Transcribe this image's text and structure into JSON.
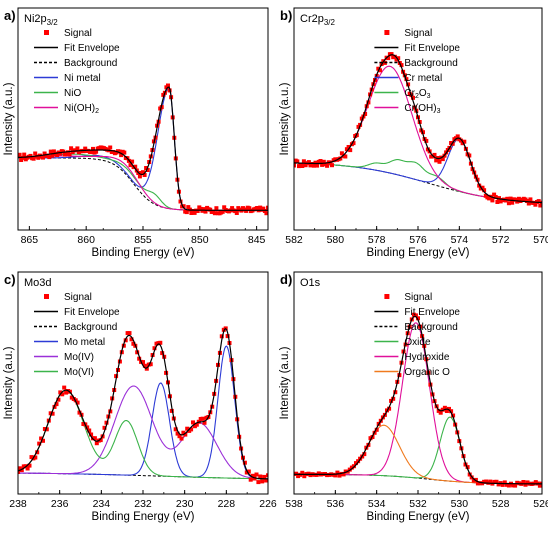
{
  "colors": {
    "signal": "#ff0000",
    "fit": "#000000",
    "background": "#000000",
    "blue": "#2d3bd6",
    "green": "#3cb44b",
    "magenta": "#e0109a",
    "purple": "#9b30d8",
    "orange": "#f07a1e"
  },
  "chart_data": [
    {
      "type": "line",
      "panel_letter": "a)",
      "title": "Ni2p3/2",
      "title_main": "Ni2p",
      "title_sub": "3/2",
      "xlabel": "Binding Energy (eV)",
      "ylabel": "Intensity (a.u.)",
      "xlim": [
        866,
        844
      ],
      "x_reversed": true,
      "xticks": [
        "865",
        "860",
        "855",
        "850",
        "845"
      ],
      "xtick_values": [
        865,
        860,
        855,
        850,
        845
      ],
      "ylim": [
        0,
        1
      ],
      "y_tick_labels": false,
      "legend_placement": "top-left",
      "legend": [
        {
          "label": "Signal",
          "style": "square",
          "color_key": "signal"
        },
        {
          "label": "Fit Envelope",
          "style": "solid",
          "color_key": "fit"
        },
        {
          "label": "Background",
          "style": "dashed",
          "color_key": "background"
        },
        {
          "label": "Ni metal",
          "style": "solid",
          "color_key": "blue"
        },
        {
          "label": "NiO",
          "style": "solid",
          "color_key": "green"
        },
        {
          "label": "Ni(OH)2",
          "label_main": "Ni(OH)",
          "label_sub": "2",
          "style": "solid",
          "color_key": "magenta"
        }
      ],
      "background_curve": {
        "kind": "shirley",
        "left": 0.32,
        "right": 0.05,
        "center": 855.8,
        "width": 0.9
      },
      "series": [
        {
          "name": "Ni metal",
          "color_key": "blue",
          "components": [
            {
              "center": 852.7,
              "amp": 0.62,
              "width": 0.45,
              "asym": 2.2
            },
            {
              "center": 858.6,
              "amp": 0.02,
              "width": 1.6
            }
          ]
        },
        {
          "name": "NiO",
          "color_key": "green",
          "components": [
            {
              "center": 854.0,
              "amp": 0.045,
              "width": 0.6
            },
            {
              "center": 856.0,
              "amp": 0.035,
              "width": 1.2
            },
            {
              "center": 861.0,
              "amp": 0.02,
              "width": 2.0
            }
          ]
        },
        {
          "name": "Ni(OH)2",
          "color_key": "magenta",
          "components": [
            {
              "center": 856.0,
              "amp": 0.035,
              "width": 1.1
            },
            {
              "center": 857.5,
              "amp": 0.02,
              "width": 1.4
            },
            {
              "center": 862.0,
              "amp": 0.01,
              "width": 2.0
            }
          ]
        }
      ],
      "signal_samples": 160,
      "signal_noise": 0.016
    },
    {
      "type": "line",
      "panel_letter": "b)",
      "title": "Cr2p3/2",
      "title_main": "Cr2p",
      "title_sub": "3/2",
      "xlabel": "Binding Energy (eV)",
      "ylabel": "Intensity (a.u.)",
      "xlim": [
        582,
        570
      ],
      "x_reversed": true,
      "xticks": [
        "582",
        "580",
        "578",
        "576",
        "574",
        "572",
        "570"
      ],
      "xtick_values": [
        582,
        580,
        578,
        576,
        574,
        572,
        570
      ],
      "ylim": [
        0,
        1
      ],
      "y_tick_labels": false,
      "legend_placement": "top-right",
      "legend": [
        {
          "label": "Signal",
          "style": "square",
          "color_key": "signal"
        },
        {
          "label": "Fit Envelope",
          "style": "solid",
          "color_key": "fit"
        },
        {
          "label": "Background",
          "style": "dashed",
          "color_key": "background"
        },
        {
          "label": "Cr metal",
          "style": "solid",
          "color_key": "blue"
        },
        {
          "label": "Cr2O3",
          "label_main": "Cr",
          "label_sub": "2",
          "label_main2": "O",
          "label_sub2": "3",
          "style": "solid",
          "color_key": "green"
        },
        {
          "label": "Cr(OH)3",
          "label_main": "Cr(OH)",
          "label_sub": "3",
          "style": "solid",
          "color_key": "magenta"
        }
      ],
      "background_curve": {
        "kind": "shirley",
        "left": 0.3,
        "right": 0.08,
        "center": 575.5,
        "width": 1.8
      },
      "series": [
        {
          "name": "Cr metal",
          "color_key": "blue",
          "components": [
            {
              "center": 574.0,
              "amp": 0.27,
              "width": 0.55
            }
          ]
        },
        {
          "name": "Cr2O3",
          "color_key": "green",
          "components": [
            {
              "center": 577.0,
              "amp": 0.07,
              "width": 0.4
            },
            {
              "center": 576.1,
              "amp": 0.08,
              "width": 0.4
            },
            {
              "center": 575.1,
              "amp": 0.045,
              "width": 0.4
            },
            {
              "center": 578.0,
              "amp": 0.035,
              "width": 0.4
            }
          ]
        },
        {
          "name": "Cr(OH)3",
          "color_key": "magenta",
          "components": [
            {
              "center": 577.35,
              "amp": 0.55,
              "width": 1.05
            }
          ]
        }
      ],
      "signal_samples": 150,
      "signal_noise": 0.018
    },
    {
      "type": "line",
      "panel_letter": "c)",
      "title": "Mo3d",
      "xlabel": "Binding Energy (eV)",
      "ylabel": "Intensity (a.u.)",
      "xlim": [
        238,
        226
      ],
      "x_reversed": true,
      "xticks": [
        "238",
        "236",
        "234",
        "232",
        "230",
        "228",
        "226"
      ],
      "xtick_values": [
        238,
        236,
        234,
        232,
        230,
        228,
        226
      ],
      "ylim": [
        0,
        1
      ],
      "y_tick_labels": false,
      "legend_placement": "top-left",
      "legend": [
        {
          "label": "Signal",
          "style": "square",
          "color_key": "signal"
        },
        {
          "label": "Fit Envelope",
          "style": "solid",
          "color_key": "fit"
        },
        {
          "label": "Background",
          "style": "dashed",
          "color_key": "background"
        },
        {
          "label": "Mo metal",
          "style": "solid",
          "color_key": "blue"
        },
        {
          "label": "Mo(IV)",
          "style": "solid",
          "color_key": "purple"
        },
        {
          "label": "Mo(VI)",
          "style": "solid",
          "color_key": "green"
        }
      ],
      "background_curve": {
        "kind": "shirley",
        "left": 0.06,
        "right": 0.02,
        "center": 231.0,
        "width": 3.0
      },
      "series": [
        {
          "name": "Mo metal",
          "color_key": "blue",
          "components": [
            {
              "center": 228.0,
              "amp": 0.68,
              "width": 0.4
            },
            {
              "center": 231.15,
              "amp": 0.48,
              "width": 0.42
            }
          ]
        },
        {
          "name": "Mo(IV)",
          "color_key": "purple",
          "components": [
            {
              "center": 229.3,
              "amp": 0.28,
              "width": 0.85
            },
            {
              "center": 232.45,
              "amp": 0.46,
              "width": 0.9
            }
          ]
        },
        {
          "name": "Mo(VI)",
          "color_key": "green",
          "components": [
            {
              "center": 232.8,
              "amp": 0.28,
              "width": 0.55
            },
            {
              "center": 235.7,
              "amp": 0.43,
              "width": 0.85
            }
          ]
        }
      ],
      "signal_samples": 130,
      "signal_noise": 0.02
    },
    {
      "type": "line",
      "panel_letter": "d)",
      "title": "O1s",
      "xlabel": "Binding Energy (eV)",
      "ylabel": "Intensity (a.u.)",
      "xlim": [
        538,
        526
      ],
      "x_reversed": true,
      "xticks": [
        "538",
        "536",
        "534",
        "532",
        "530",
        "528",
        "526"
      ],
      "xtick_values": [
        538,
        536,
        534,
        532,
        530,
        528,
        526
      ],
      "ylim": [
        0,
        1
      ],
      "y_tick_labels": false,
      "legend_placement": "top-right",
      "legend": [
        {
          "label": "Signal",
          "style": "square",
          "color_key": "signal"
        },
        {
          "label": "Fit Envelope",
          "style": "solid",
          "color_key": "fit"
        },
        {
          "label": "Background",
          "style": "dashed",
          "color_key": "background"
        },
        {
          "label": "Oxide",
          "style": "solid",
          "color_key": "green"
        },
        {
          "label": "Hydroxide",
          "style": "solid",
          "color_key": "magenta"
        },
        {
          "label": "Organic O",
          "style": "solid",
          "color_key": "orange"
        }
      ],
      "background_curve": {
        "kind": "shirley",
        "left": 0.05,
        "right": 0.0,
        "center": 531.5,
        "width": 1.2
      },
      "series": [
        {
          "name": "Oxide",
          "color_key": "green",
          "components": [
            {
              "center": 530.45,
              "amp": 0.33,
              "width": 0.48
            }
          ]
        },
        {
          "name": "Hydroxide",
          "color_key": "magenta",
          "components": [
            {
              "center": 532.1,
              "amp": 0.8,
              "width": 0.65
            }
          ]
        },
        {
          "name": "Organic O",
          "color_key": "orange",
          "components": [
            {
              "center": 533.65,
              "amp": 0.26,
              "width": 0.75
            }
          ]
        }
      ],
      "signal_samples": 120,
      "signal_noise": 0.01
    }
  ]
}
